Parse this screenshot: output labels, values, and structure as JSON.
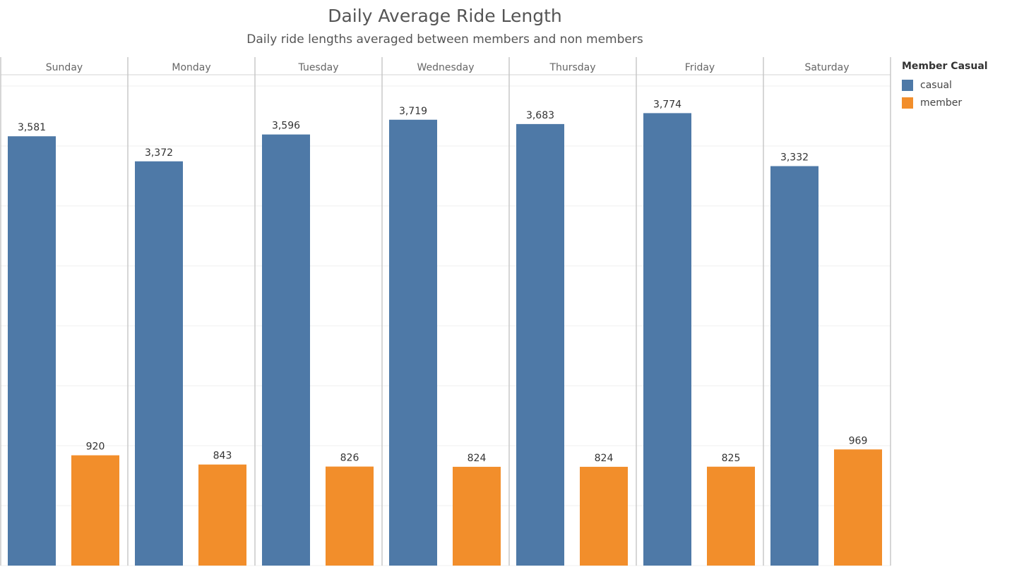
{
  "title": "Daily Average Ride Length",
  "subtitle": "Daily ride lengths averaged between members and non members",
  "legend": {
    "title": "Member Casual",
    "items": [
      {
        "label": "casual",
        "color": "#4e79a7"
      },
      {
        "label": "member",
        "color": "#f28e2b"
      }
    ]
  },
  "chart_data": {
    "type": "bar",
    "categories": [
      "Sunday",
      "Monday",
      "Tuesday",
      "Wednesday",
      "Thursday",
      "Friday",
      "Saturday"
    ],
    "series": [
      {
        "name": "casual",
        "color": "#4e79a7",
        "values": [
          3581,
          3372,
          3596,
          3719,
          3683,
          3774,
          3332
        ]
      },
      {
        "name": "member",
        "color": "#f28e2b",
        "values": [
          920,
          843,
          826,
          824,
          824,
          825,
          969
        ]
      }
    ],
    "data_labels": {
      "casual": [
        "3,581",
        "3,372",
        "3,596",
        "3,719",
        "3,683",
        "3,774",
        "3,332"
      ],
      "member": [
        "920",
        "843",
        "826",
        "824",
        "824",
        "825",
        "969"
      ]
    },
    "ylim": [
      0,
      4000
    ],
    "grid": true,
    "legend_position": "right"
  }
}
